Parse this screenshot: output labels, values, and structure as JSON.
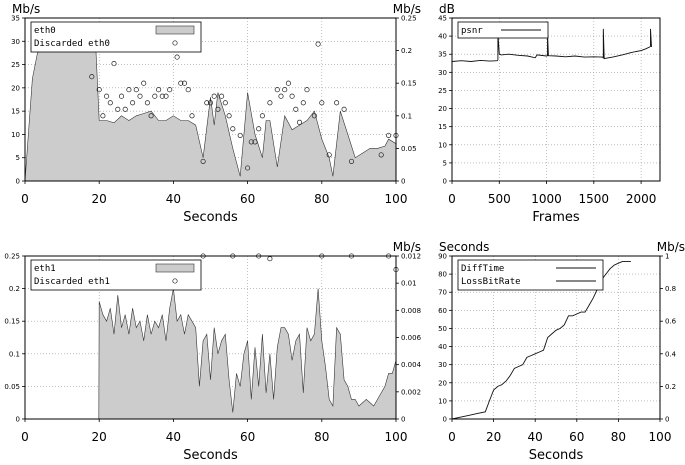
{
  "chart_data": [
    {
      "id": "eth0",
      "type": "area",
      "xlabel": "Seconds",
      "ylabel_left": "Mb/s",
      "ylabel_right": "Mb/s",
      "xlim": [
        0,
        100
      ],
      "ylim_left": [
        0,
        35
      ],
      "ylim_right": [
        0,
        0.25
      ],
      "x_ticks": [
        "0",
        "20",
        "40",
        "60",
        "80",
        "100"
      ],
      "y_ticks_left": [
        "0",
        "5",
        "10",
        "15",
        "20",
        "25",
        "30",
        "35"
      ],
      "y_ticks_right": [
        "0",
        "0.05",
        "0.1",
        "0.15",
        "0.2",
        "0.25"
      ],
      "grid": true,
      "legend_position": "top-left",
      "series": [
        {
          "name": "eth0",
          "axis": "left",
          "style": "filled-area",
          "x": [
            0,
            2,
            4,
            18,
            19,
            20,
            22,
            24,
            26,
            28,
            30,
            32,
            34,
            36,
            38,
            40,
            42,
            44,
            46,
            48,
            50,
            51,
            52,
            54,
            56,
            58,
            60,
            62,
            64,
            65,
            66,
            68,
            70,
            72,
            74,
            76,
            78,
            80,
            82,
            83,
            85,
            87,
            89,
            91,
            93,
            95,
            97,
            98,
            100
          ],
          "values": [
            0,
            22,
            30,
            30,
            30,
            13,
            13,
            12.5,
            14,
            13,
            14,
            14.5,
            15,
            13,
            13,
            14,
            13,
            13,
            12,
            5,
            18,
            12,
            19,
            14,
            7,
            1,
            19,
            10,
            5,
            13,
            13,
            3,
            14,
            11,
            12,
            13,
            15,
            9,
            5,
            1,
            15,
            10,
            5,
            6,
            7,
            7,
            7.5,
            9,
            8
          ]
        },
        {
          "name": "Discarded eth0",
          "axis": "right",
          "style": "circle-markers",
          "x": [
            18,
            20,
            21,
            22,
            23,
            24,
            25,
            26,
            27,
            28,
            29,
            30,
            31,
            32,
            33,
            34,
            35,
            36,
            37,
            38,
            39,
            40,
            41,
            42,
            43,
            44,
            45,
            48,
            49,
            50,
            51,
            52,
            53,
            54,
            55,
            56,
            58,
            60,
            61,
            62,
            63,
            64,
            66,
            68,
            69,
            70,
            71,
            72,
            73,
            74,
            75,
            76,
            78,
            79,
            80,
            82,
            84,
            86,
            88,
            96,
            98,
            100
          ],
          "values": [
            0.16,
            0.14,
            0.1,
            0.13,
            0.12,
            0.18,
            0.11,
            0.13,
            0.11,
            0.14,
            0.12,
            0.14,
            0.13,
            0.15,
            0.12,
            0.1,
            0.13,
            0.14,
            0.13,
            0.13,
            0.14,
            0.21,
            0.19,
            0.15,
            0.15,
            0.14,
            0.1,
            0.03,
            0.12,
            0.12,
            0.13,
            0.11,
            0.13,
            0.12,
            0.1,
            0.08,
            0.07,
            0.02,
            0.06,
            0.06,
            0.08,
            0.1,
            0.12,
            0.14,
            0.13,
            0.14,
            0.15,
            0.13,
            0.11,
            0.09,
            0.12,
            0.14,
            0.1,
            0.21,
            0.12,
            0.04,
            0.12,
            0.11,
            0.03,
            0.04,
            0.07,
            0.07
          ]
        }
      ]
    },
    {
      "id": "psnr",
      "type": "line",
      "xlabel": "Frames",
      "ylabel_left": "dB",
      "xlim": [
        0,
        2200
      ],
      "ylim_left": [
        0,
        45
      ],
      "x_ticks": [
        "0",
        "500",
        "1000",
        "1500",
        "2000"
      ],
      "y_ticks_left": [
        "0",
        "5",
        "10",
        "15",
        "20",
        "25",
        "30",
        "35",
        "40",
        "45"
      ],
      "grid": true,
      "legend_position": "top-left",
      "series": [
        {
          "name": "psnr",
          "axis": "left",
          "x": [
            0,
            100,
            200,
            300,
            400,
            480,
            485,
            485,
            500,
            520,
            600,
            700,
            800,
            880,
            900,
            1000,
            1010,
            1010,
            1020,
            1100,
            1200,
            1300,
            1400,
            1500,
            1590,
            1600,
            1600,
            1610,
            1700,
            1800,
            1900,
            2000,
            2050,
            2090,
            2100,
            2100,
            2110
          ],
          "values": [
            33,
            33.2,
            33,
            33.3,
            33.1,
            33.2,
            33.5,
            41,
            35,
            34.8,
            35,
            34.7,
            34.5,
            34,
            34.8,
            34.5,
            34.6,
            41,
            34.6,
            34.5,
            34.3,
            34.5,
            34.2,
            34.3,
            34.2,
            34,
            42,
            33.8,
            34.2,
            34.8,
            35.5,
            36,
            36.5,
            37,
            37.2,
            42,
            37
          ]
        }
      ]
    },
    {
      "id": "eth1",
      "type": "area",
      "xlabel": "Seconds",
      "ylabel_right": "Mb/s",
      "xlim": [
        0,
        100
      ],
      "ylim_left": [
        0,
        0.25
      ],
      "ylim_right": [
        0,
        0.012
      ],
      "x_ticks": [
        "0",
        "20",
        "40",
        "60",
        "80",
        "100"
      ],
      "y_ticks_left": [
        "0",
        "0.05",
        "0.1",
        "0.15",
        "0.2",
        "0.25"
      ],
      "y_ticks_right": [
        "0",
        "0.002",
        "0.004",
        "0.006",
        "0.008",
        "0.01",
        "0.012"
      ],
      "grid": true,
      "legend_position": "top-left",
      "series": [
        {
          "name": "eth1",
          "axis": "left",
          "style": "filled-area",
          "x": [
            19.9,
            20,
            21,
            22,
            23,
            24,
            25,
            26,
            27,
            28,
            29,
            30,
            31,
            32,
            33,
            34,
            35,
            36,
            37,
            38,
            39,
            40,
            41,
            42,
            43,
            44,
            45,
            46,
            47,
            48,
            49,
            50,
            51,
            52,
            53,
            54,
            55,
            56,
            57,
            58,
            59,
            60,
            61,
            62,
            63,
            64,
            65,
            66,
            67,
            68,
            69,
            70,
            71,
            72,
            73,
            74,
            75,
            76,
            77,
            78,
            79,
            80,
            81,
            82,
            83,
            84,
            85,
            86,
            87,
            88,
            89,
            90,
            92,
            94,
            96,
            97,
            98,
            99,
            100
          ],
          "values": [
            0,
            0.18,
            0.16,
            0.15,
            0.17,
            0.13,
            0.19,
            0.14,
            0.16,
            0.13,
            0.17,
            0.14,
            0.15,
            0.12,
            0.16,
            0.13,
            0.15,
            0.14,
            0.16,
            0.12,
            0.17,
            0.2,
            0.15,
            0.16,
            0.13,
            0.16,
            0.15,
            0.14,
            0.05,
            0.12,
            0.13,
            0.06,
            0.14,
            0.1,
            0.12,
            0.13,
            0.06,
            0.01,
            0.07,
            0.05,
            0.1,
            0.12,
            0.03,
            0.11,
            0.05,
            0.13,
            0.04,
            0.1,
            0.03,
            0.11,
            0.14,
            0.14,
            0.13,
            0.09,
            0.12,
            0.13,
            0.04,
            0.14,
            0.12,
            0.13,
            0.2,
            0.12,
            0.08,
            0.03,
            0.02,
            0.14,
            0.13,
            0.06,
            0.05,
            0.03,
            0.03,
            0.02,
            0.03,
            0.02,
            0.04,
            0.05,
            0.07,
            0.07,
            0.09
          ]
        },
        {
          "name": "Discarded eth1",
          "axis": "right",
          "style": "circle-markers",
          "x": [
            48,
            56,
            63,
            66,
            80,
            88,
            98,
            100
          ],
          "values": [
            0.012,
            0.012,
            0.012,
            0.0118,
            0.012,
            0.012,
            0.012,
            0.011
          ]
        }
      ]
    },
    {
      "id": "difftime",
      "type": "line",
      "xlabel": "Seconds",
      "ylabel_left": "Seconds",
      "ylabel_right": "Mb/s",
      "xlim": [
        0,
        100
      ],
      "ylim_left": [
        0,
        90
      ],
      "ylim_right": [
        0,
        1
      ],
      "x_ticks": [
        "0",
        "20",
        "40",
        "60",
        "80",
        "100"
      ],
      "y_ticks_left": [
        "0",
        "10",
        "20",
        "30",
        "40",
        "50",
        "60",
        "70",
        "80",
        "90"
      ],
      "y_ticks_right": [
        "0",
        "0.2",
        "0.4",
        "0.6",
        "0.8",
        "1"
      ],
      "grid": true,
      "legend_position": "top-left",
      "series": [
        {
          "name": "DiffTime",
          "axis": "left",
          "x": [
            0,
            4,
            8,
            12,
            16,
            18,
            20,
            22,
            24,
            26,
            28,
            30,
            32,
            34,
            36,
            38,
            40,
            42,
            44,
            46,
            48,
            50,
            52,
            54,
            56,
            58,
            60,
            62,
            64,
            66,
            68,
            70,
            72,
            74,
            76,
            78,
            80,
            82,
            84,
            86
          ],
          "values": [
            0,
            1,
            2,
            3,
            4,
            10,
            16,
            18,
            19,
            21,
            24,
            28,
            29,
            30,
            34,
            35,
            36,
            37,
            38,
            45,
            47,
            49,
            50,
            52,
            57,
            57,
            58,
            59,
            59,
            63,
            67,
            72,
            77,
            80,
            83,
            85,
            86,
            87,
            87,
            87
          ]
        },
        {
          "name": "LossBitRate",
          "axis": "right",
          "x": [
            0,
            100
          ],
          "values": [
            0,
            0
          ]
        }
      ]
    }
  ]
}
